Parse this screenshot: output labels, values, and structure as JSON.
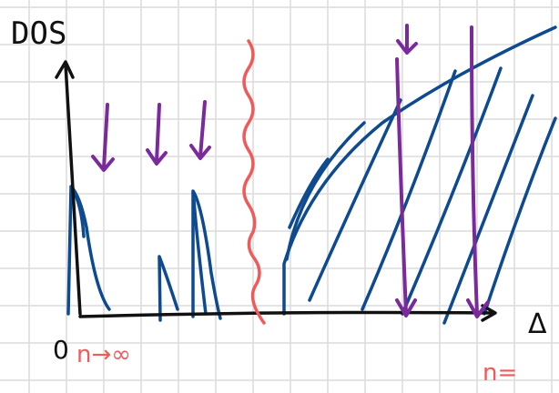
{
  "labels": {
    "y_axis": "DOS",
    "origin": "0",
    "limit": "n→∞",
    "n_eq": "n=",
    "x_axis": "Δ"
  }
}
